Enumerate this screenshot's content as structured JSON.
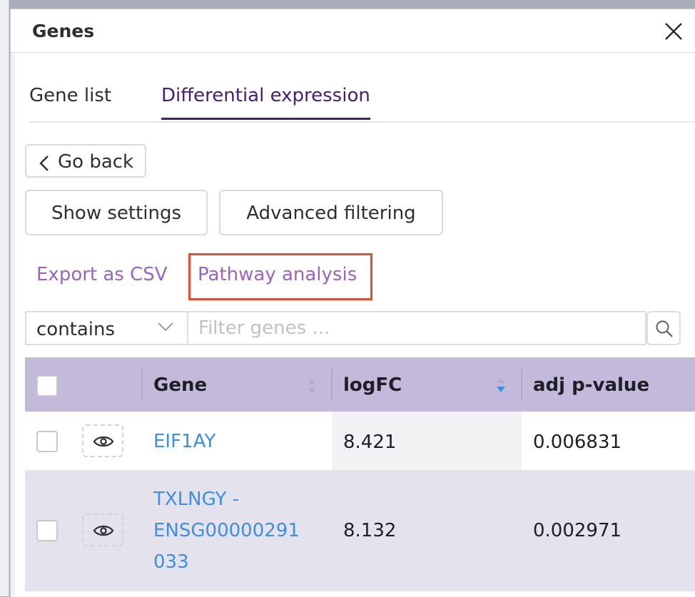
{
  "panel": {
    "title": "Genes"
  },
  "tabs": [
    {
      "label": "Gene list",
      "active": false
    },
    {
      "label": "Differential expression",
      "active": true
    }
  ],
  "buttons": {
    "go_back": "Go back",
    "show_settings": "Show settings",
    "advanced_filtering": "Advanced filtering"
  },
  "links": {
    "export_csv": "Export as CSV",
    "pathway_analysis": "Pathway analysis"
  },
  "filter": {
    "mode": "contains",
    "placeholder": "Filter genes ..."
  },
  "table": {
    "columns": [
      "Gene",
      "logFC",
      "adj p-value"
    ],
    "sorted_by": "logFC",
    "sort_direction": "descending",
    "rows": [
      {
        "gene": "EIF1AY",
        "logFC": "8.421",
        "adj_p_value": "0.006831"
      },
      {
        "gene_lines": [
          "TXLNGY -",
          "ENSG00000291",
          "033"
        ],
        "logFC": "8.132",
        "adj_p_value": "0.002971"
      }
    ]
  },
  "icons": [
    "close-icon",
    "chevron-left-icon",
    "chevron-down-icon",
    "search-icon",
    "sort-icon",
    "sort-desc-icon",
    "eye-icon"
  ],
  "colors": {
    "active_tab": "#47206f",
    "link": "#9a64c0",
    "gene_link": "#3d8fe0",
    "table_header": "#c3b9da",
    "highlight_box": "#e34d33"
  }
}
